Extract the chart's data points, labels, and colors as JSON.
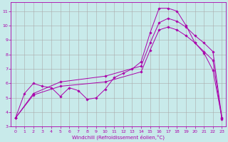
{
  "bg_color": "#c8eaea",
  "grid_color": "#aaaaaa",
  "line_color": "#aa00aa",
  "xlabel": "Windchill (Refroidissement éolien,°C)",
  "xlim_min": -0.5,
  "xlim_max": 23.4,
  "ylim_min": 3.0,
  "ylim_max": 11.6,
  "yticks": [
    3,
    4,
    5,
    6,
    7,
    8,
    9,
    10,
    11
  ],
  "xticks": [
    0,
    1,
    2,
    3,
    4,
    5,
    6,
    7,
    8,
    9,
    10,
    11,
    12,
    13,
    14,
    15,
    16,
    17,
    18,
    19,
    20,
    21,
    22,
    23
  ],
  "line_jagged_x": [
    0,
    1,
    2,
    3,
    4,
    5,
    6,
    7,
    8,
    9,
    10,
    11,
    12,
    13,
    14,
    15,
    16,
    17,
    18,
    19,
    20,
    21,
    22,
    23
  ],
  "line_jagged_y": [
    3.6,
    5.3,
    6.0,
    5.8,
    5.7,
    5.1,
    5.7,
    5.5,
    4.9,
    5.0,
    5.6,
    6.4,
    6.7,
    7.0,
    7.5,
    9.5,
    11.2,
    11.2,
    11.0,
    10.0,
    8.8,
    8.1,
    6.9,
    3.6
  ],
  "line_upper_x": [
    0,
    2,
    5,
    10,
    14,
    15,
    16,
    17,
    18,
    19,
    20,
    21,
    22,
    23
  ],
  "line_upper_y": [
    3.6,
    5.3,
    6.1,
    6.5,
    7.2,
    8.8,
    10.2,
    10.5,
    10.3,
    9.9,
    9.3,
    8.8,
    8.2,
    3.6
  ],
  "line_lower_x": [
    0,
    2,
    5,
    10,
    14,
    15,
    16,
    17,
    18,
    19,
    20,
    21,
    22,
    23
  ],
  "line_lower_y": [
    3.6,
    5.2,
    5.8,
    6.1,
    6.8,
    8.3,
    9.7,
    9.9,
    9.7,
    9.3,
    8.8,
    8.2,
    7.6,
    3.5
  ]
}
